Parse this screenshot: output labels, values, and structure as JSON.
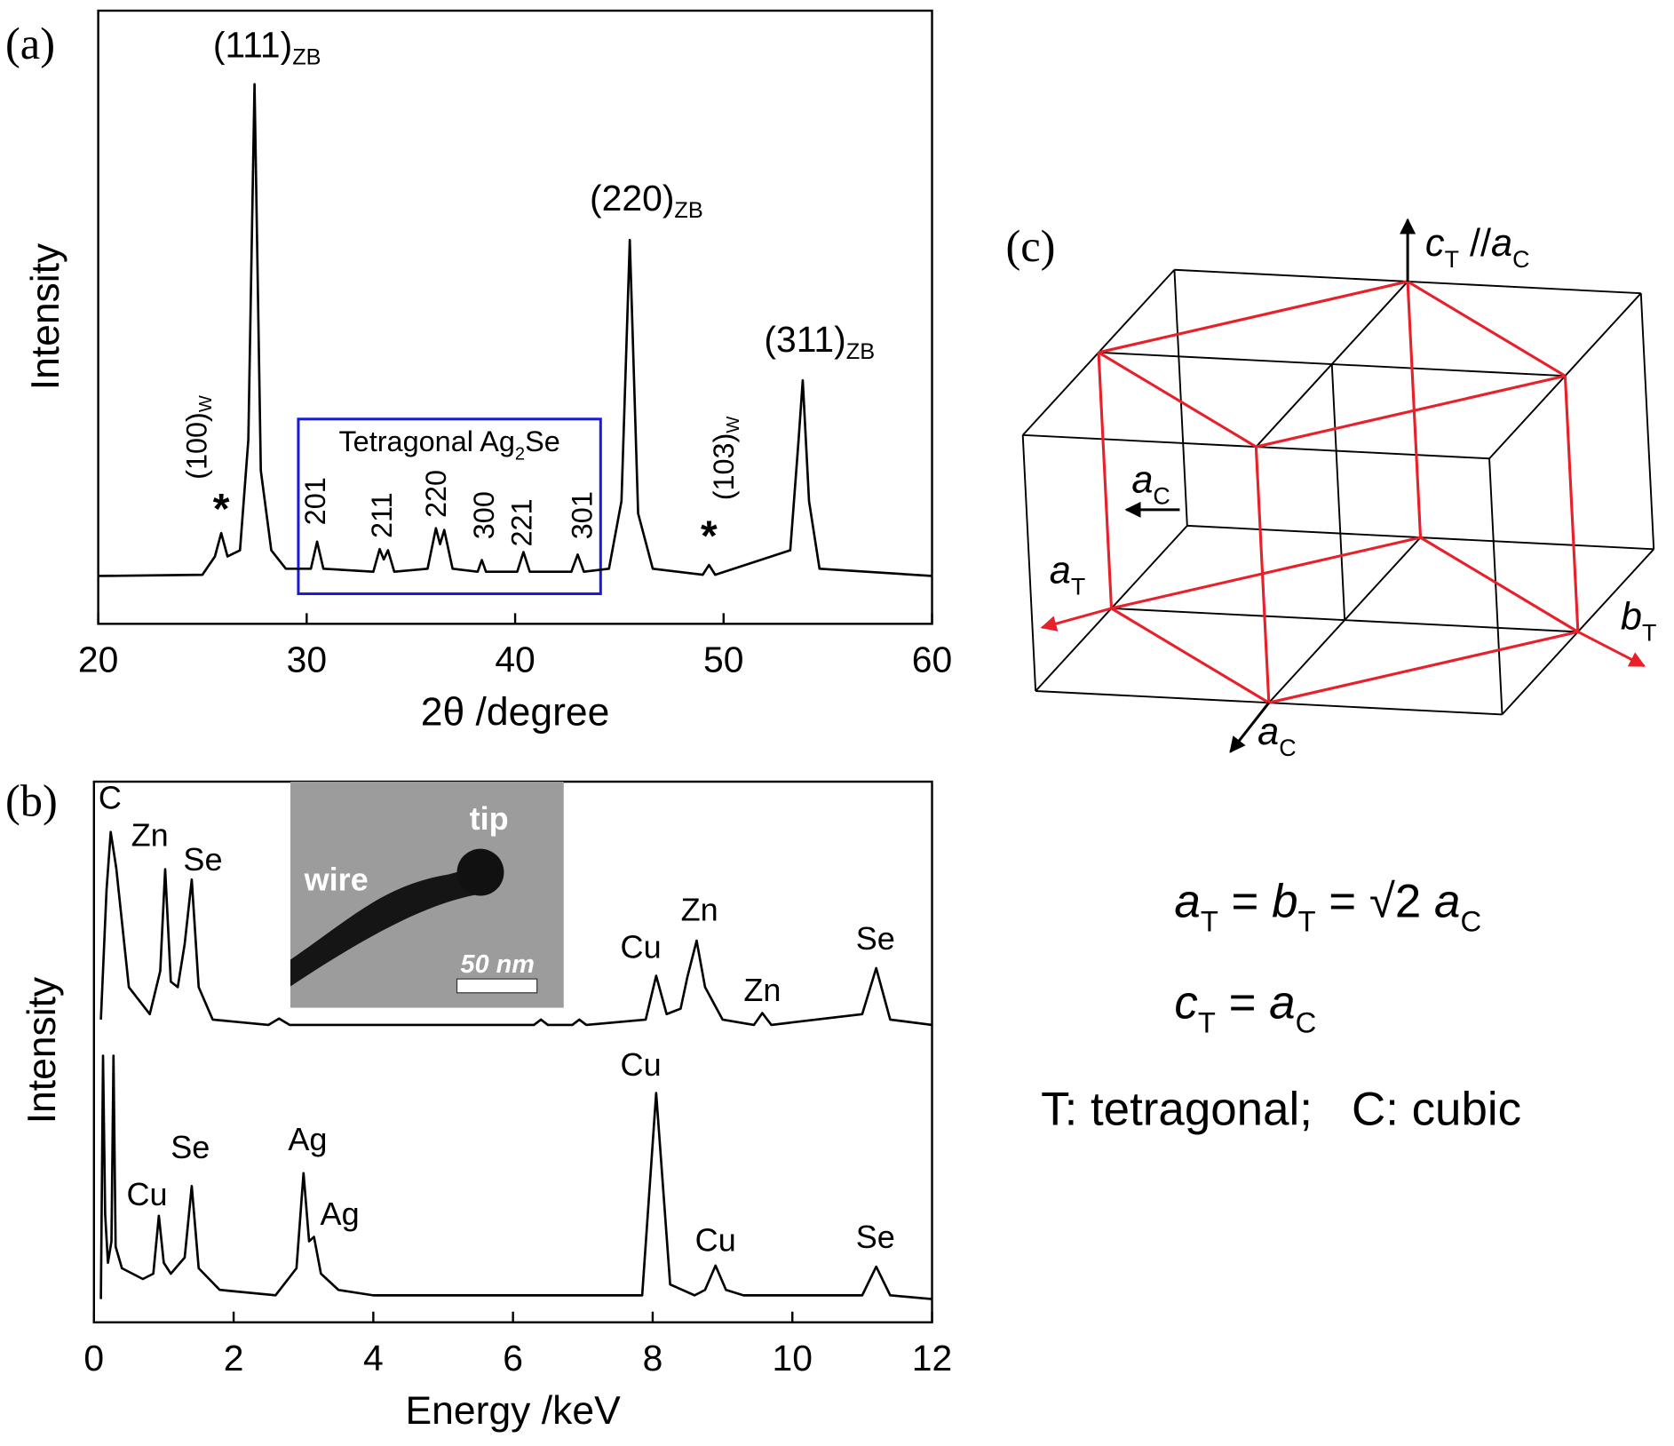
{
  "chart_data": [
    {
      "type": "line",
      "panel_label": "(a)",
      "xlabel": "2θ /degree",
      "ylabel": "Intensity",
      "xlim": [
        20,
        60
      ],
      "xticks": [
        20,
        30,
        40,
        50,
        60
      ],
      "ylim": [
        0,
        100
      ],
      "series": [
        {
          "color": "#000000",
          "x": [
            20,
            25,
            25.6,
            25.9,
            26.2,
            26.8,
            27.2,
            27.5,
            27.8,
            28.3,
            29,
            30.2,
            30.5,
            30.8,
            33.2,
            33.5,
            33.7,
            33.9,
            34.2,
            35.8,
            36.2,
            36.4,
            36.6,
            37,
            38.2,
            38.4,
            38.6,
            40.1,
            40.4,
            40.7,
            42.7,
            43,
            43.3,
            44.5,
            45.1,
            45.5,
            45.9,
            46.6,
            49,
            49.3,
            49.6,
            53.2,
            53.6,
            53.8,
            54.1,
            54.6,
            60
          ],
          "values": [
            7.8,
            8,
            11,
            14.8,
            11,
            12,
            30,
            88,
            25,
            12,
            9,
            9,
            13.4,
            9,
            8.5,
            12.2,
            10.5,
            12,
            8.5,
            9,
            15.6,
            13,
            15.3,
            9,
            8.5,
            10.4,
            8.5,
            8.5,
            11.7,
            8.5,
            8.5,
            11.3,
            8.5,
            9,
            20,
            62.6,
            18,
            9,
            8,
            9.6,
            8,
            12,
            30,
            39.7,
            20,
            9,
            7.8
          ]
        }
      ],
      "annotations": [
        {
          "text": "(111)",
          "sub": "ZB",
          "x": 28.1,
          "y": 94
        },
        {
          "text": "(220)",
          "sub": "ZB",
          "x": 46.3,
          "y": 69
        },
        {
          "text": "(311)",
          "sub": "ZB",
          "x": 54.6,
          "y": 46
        },
        {
          "text": "(100)",
          "sub": "W",
          "x": 24.8,
          "y": 30.4,
          "rotate": -90
        },
        {
          "text": "(103)",
          "sub": "W",
          "x": 50.1,
          "y": 27,
          "rotate": -90
        },
        {
          "text": "*",
          "x": 25.9,
          "y": 18.3
        },
        {
          "text": "*",
          "x": 49.3,
          "y": 13.9
        },
        {
          "text": "201",
          "x": 30.5,
          "y": 20,
          "rotate": -90
        },
        {
          "text": "211",
          "x": 33.7,
          "y": 17.7,
          "rotate": -90
        },
        {
          "text": "220",
          "x": 36.3,
          "y": 21.2,
          "rotate": -90
        },
        {
          "text": "300",
          "x": 38.6,
          "y": 17.7,
          "rotate": -90
        },
        {
          "text": "221",
          "x": 40.4,
          "y": 16.5,
          "rotate": -90
        },
        {
          "text": "301",
          "x": 43.3,
          "y": 17.7,
          "rotate": -90
        }
      ],
      "highlight_box": {
        "label": [
          "Tetragonal Ag",
          {
            "sub": "2"
          },
          "Se"
        ],
        "xrange": [
          29.6,
          44.1
        ],
        "yrange": [
          4.9,
          33.4
        ],
        "color": "#1a1adb"
      }
    },
    {
      "type": "line",
      "panel_label": "(b)",
      "xlabel": "Energy /keV",
      "ylabel": "Intensity",
      "xlim": [
        0,
        12
      ],
      "xticks": [
        0,
        2,
        4,
        6,
        8,
        10,
        12
      ],
      "ylim": [
        0,
        100
      ],
      "series": [
        {
          "color": "#000000",
          "x": [
            0.1,
            0.18,
            0.24,
            0.32,
            0.5,
            0.8,
            0.95,
            1.02,
            1.1,
            1.2,
            1.3,
            1.4,
            1.5,
            1.7,
            2.5,
            2.65,
            2.8,
            6.3,
            6.4,
            6.5,
            6.85,
            6.95,
            7.05,
            7.9,
            8.05,
            8.2,
            8.4,
            8.5,
            8.63,
            8.75,
            9.0,
            9.45,
            9.57,
            9.7,
            11.0,
            11.2,
            11.4,
            12
          ],
          "values": [
            56,
            80,
            90.7,
            84,
            62,
            57,
            65,
            83.8,
            63,
            62,
            70,
            81.9,
            62,
            56,
            55,
            56.2,
            55,
            55,
            56,
            55,
            55,
            56,
            55,
            56,
            64.1,
            57,
            58,
            64,
            70.6,
            62,
            56,
            55,
            57.2,
            55,
            57,
            65.5,
            56,
            55
          ]
        },
        {
          "color": "#000000",
          "x": [
            0.1,
            0.13,
            0.16,
            0.2,
            0.25,
            0.28,
            0.31,
            0.4,
            0.7,
            0.85,
            0.93,
            1.0,
            1.1,
            1.3,
            1.4,
            1.5,
            1.8,
            2.6,
            2.9,
            3.0,
            3.08,
            3.15,
            3.25,
            3.5,
            4,
            7.85,
            8.05,
            8.25,
            8.6,
            8.75,
            8.9,
            9.05,
            9.3,
            11.0,
            11.2,
            11.4,
            12
          ],
          "values": [
            4.3,
            49.3,
            20,
            11,
            15,
            49.3,
            14,
            10,
            8,
            9,
            19.7,
            11,
            9,
            12,
            25.2,
            10,
            6,
            5,
            10,
            27.6,
            15,
            15.8,
            9,
            6,
            5,
            5,
            42.4,
            7,
            5,
            6,
            10.5,
            6,
            5,
            5,
            10.3,
            5,
            4.3
          ]
        }
      ],
      "annotations": [
        {
          "text": "C",
          "x": 0.23,
          "y": 96.6
        },
        {
          "text": "Zn",
          "x": 0.8,
          "y": 89.7
        },
        {
          "text": "Se",
          "x": 1.56,
          "y": 85.2
        },
        {
          "text": "Cu",
          "x": 7.83,
          "y": 69
        },
        {
          "text": "Zn",
          "x": 8.67,
          "y": 75.9
        },
        {
          "text": "Zn",
          "x": 9.57,
          "y": 61.1
        },
        {
          "text": "Se",
          "x": 11.19,
          "y": 70.6
        },
        {
          "text": "Cu",
          "x": 0.76,
          "y": 23.3
        },
        {
          "text": "Se",
          "x": 1.38,
          "y": 32
        },
        {
          "text": "Ag",
          "x": 3.06,
          "y": 33.5
        },
        {
          "text": "Ag",
          "x": 3.52,
          "y": 19.7
        },
        {
          "text": "Cu",
          "x": 7.83,
          "y": 47.3
        },
        {
          "text": "Cu",
          "x": 8.9,
          "y": 14.8
        },
        {
          "text": "Se",
          "x": 11.19,
          "y": 15.4
        }
      ],
      "inset": {
        "tip": "tip",
        "wire": "wire",
        "scale": "50 nm"
      }
    }
  ],
  "diagram": {
    "panel_label": "(c)",
    "axis_labels": [
      [
        {
          "i": "c"
        },
        {
          "sub": "T"
        },
        " //",
        {
          "i": "a"
        },
        {
          "sub": "C"
        }
      ],
      [
        {
          "i": "a"
        },
        {
          "sub": "C"
        }
      ],
      [
        {
          "i": "a"
        },
        {
          "sub": "T"
        }
      ],
      [
        {
          "i": "b"
        },
        {
          "sub": "T"
        }
      ],
      [
        {
          "i": "a"
        },
        {
          "sub": "C"
        }
      ]
    ],
    "equations": [
      [
        {
          "i": "a"
        },
        {
          "sub": "T"
        },
        " = ",
        {
          "i": "b"
        },
        {
          "sub": "T"
        },
        " = √2 ",
        {
          "i": "a"
        },
        {
          "sub": "C"
        }
      ],
      [
        {
          "i": "c"
        },
        {
          "sub": "T"
        },
        " = ",
        {
          "i": "a"
        },
        {
          "sub": "C"
        }
      ]
    ],
    "note": "T: tetragonal;   C: cubic"
  }
}
